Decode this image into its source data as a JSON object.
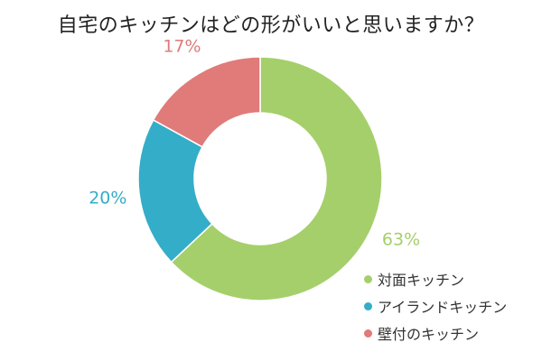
{
  "chart_data": {
    "type": "pie",
    "title": "自宅のキッチンはどの形がいいと思いますか？",
    "donut": true,
    "categories": [
      "対面キッチン",
      "アイランドキッチン",
      "壁付のキッチン"
    ],
    "values": [
      63,
      20,
      17
    ],
    "labels": [
      "63%",
      "20%",
      "17%"
    ],
    "colors": [
      "#a5cf6b",
      "#34adc9",
      "#e07b79"
    ],
    "legend_position": "bottom-right"
  }
}
